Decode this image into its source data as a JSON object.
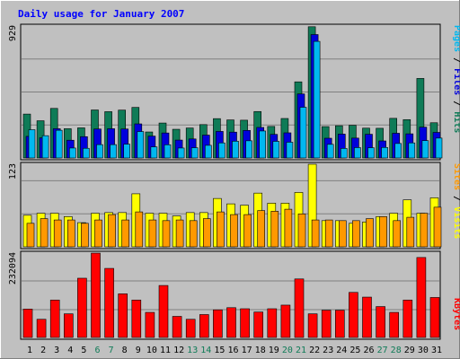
{
  "chart_data": [
    {
      "type": "bar",
      "title": "Daily usage for January 2007",
      "categories": [
        "1",
        "2",
        "3",
        "4",
        "5",
        "6",
        "7",
        "8",
        "9",
        "10",
        "11",
        "12",
        "13",
        "14",
        "15",
        "16",
        "17",
        "18",
        "19",
        "20",
        "21",
        "22",
        "23",
        "24",
        "25",
        "26",
        "27",
        "28",
        "29",
        "30",
        "31"
      ],
      "weekend_days": [
        "6",
        "7",
        "13",
        "14",
        "20",
        "21",
        "27",
        "28"
      ],
      "ymax_label": "929",
      "ylim": [
        0,
        929
      ],
      "legend": [
        "Pages",
        "Files",
        "Hits"
      ],
      "series": [
        {
          "name": "Hits",
          "color": "#0f7b57",
          "values": [
            309,
            262,
            349,
            206,
            212,
            338,
            326,
            337,
            356,
            183,
            246,
            202,
            211,
            235,
            277,
            268,
            266,
            327,
            222,
            278,
            536,
            924,
            221,
            227,
            230,
            210,
            209,
            279,
            270,
            560,
            248
          ]
        },
        {
          "name": "Files",
          "color": "#0000dc",
          "values": [
            152,
            142,
            206,
            125,
            150,
            204,
            206,
            204,
            240,
            154,
            176,
            126,
            134,
            161,
            187,
            182,
            194,
            215,
            166,
            177,
            451,
            869,
            139,
            168,
            140,
            167,
            120,
            174,
            170,
            217,
            180
          ]
        },
        {
          "name": "Pages",
          "color": "#00b8f0",
          "values": [
            199,
            157,
            195,
            70,
            68,
            94,
            94,
            97,
            186,
            78,
            93,
            70,
            72,
            89,
            106,
            118,
            121,
            190,
            117,
            111,
            357,
            821,
            96,
            67,
            73,
            72,
            74,
            102,
            106,
            122,
            140
          ]
        }
      ]
    },
    {
      "type": "bar",
      "categories": [
        "1",
        "2",
        "3",
        "4",
        "5",
        "6",
        "7",
        "8",
        "9",
        "10",
        "11",
        "12",
        "13",
        "14",
        "15",
        "16",
        "17",
        "18",
        "19",
        "20",
        "21",
        "22",
        "23",
        "24",
        "25",
        "26",
        "27",
        "28",
        "29",
        "30",
        "31"
      ],
      "ymax_label": "123",
      "ylim": [
        0,
        123
      ],
      "legend": [
        "Sites",
        "Visits"
      ],
      "series": [
        {
          "name": "Visits",
          "color": "#ffff00",
          "values": [
            47,
            50,
            50,
            45,
            36,
            50,
            51,
            51,
            79,
            50,
            50,
            46,
            51,
            51,
            72,
            64,
            62,
            80,
            65,
            65,
            81,
            123,
            39,
            39,
            35,
            37,
            45,
            50,
            70,
            50,
            73
          ]
        },
        {
          "name": "Sites",
          "color": "#ff9900",
          "values": [
            35,
            42,
            40,
            40,
            35,
            40,
            48,
            40,
            52,
            40,
            39,
            40,
            39,
            42,
            52,
            48,
            48,
            54,
            53,
            56,
            49,
            40,
            40,
            39,
            39,
            42,
            45,
            39,
            44,
            50,
            59
          ]
        }
      ]
    },
    {
      "type": "bar",
      "categories": [
        "1",
        "2",
        "3",
        "4",
        "5",
        "6",
        "7",
        "8",
        "9",
        "10",
        "11",
        "12",
        "13",
        "14",
        "15",
        "16",
        "17",
        "18",
        "19",
        "20",
        "21",
        "22",
        "23",
        "24",
        "25",
        "26",
        "27",
        "28",
        "29",
        "30",
        "31"
      ],
      "ymax_label": "232094",
      "ylim": [
        0,
        232094
      ],
      "legend": [
        "KBytes"
      ],
      "series": [
        {
          "name": "KBytes",
          "color": "#ff0000",
          "values": [
            78000,
            50000,
            103000,
            65000,
            163000,
            232000,
            190000,
            120000,
            103000,
            69000,
            143000,
            58000,
            50000,
            63000,
            76000,
            82000,
            79000,
            70000,
            79000,
            89000,
            161000,
            65000,
            75000,
            75000,
            124000,
            111000,
            85000,
            69000,
            103000,
            220000,
            110000
          ]
        }
      ]
    }
  ]
}
